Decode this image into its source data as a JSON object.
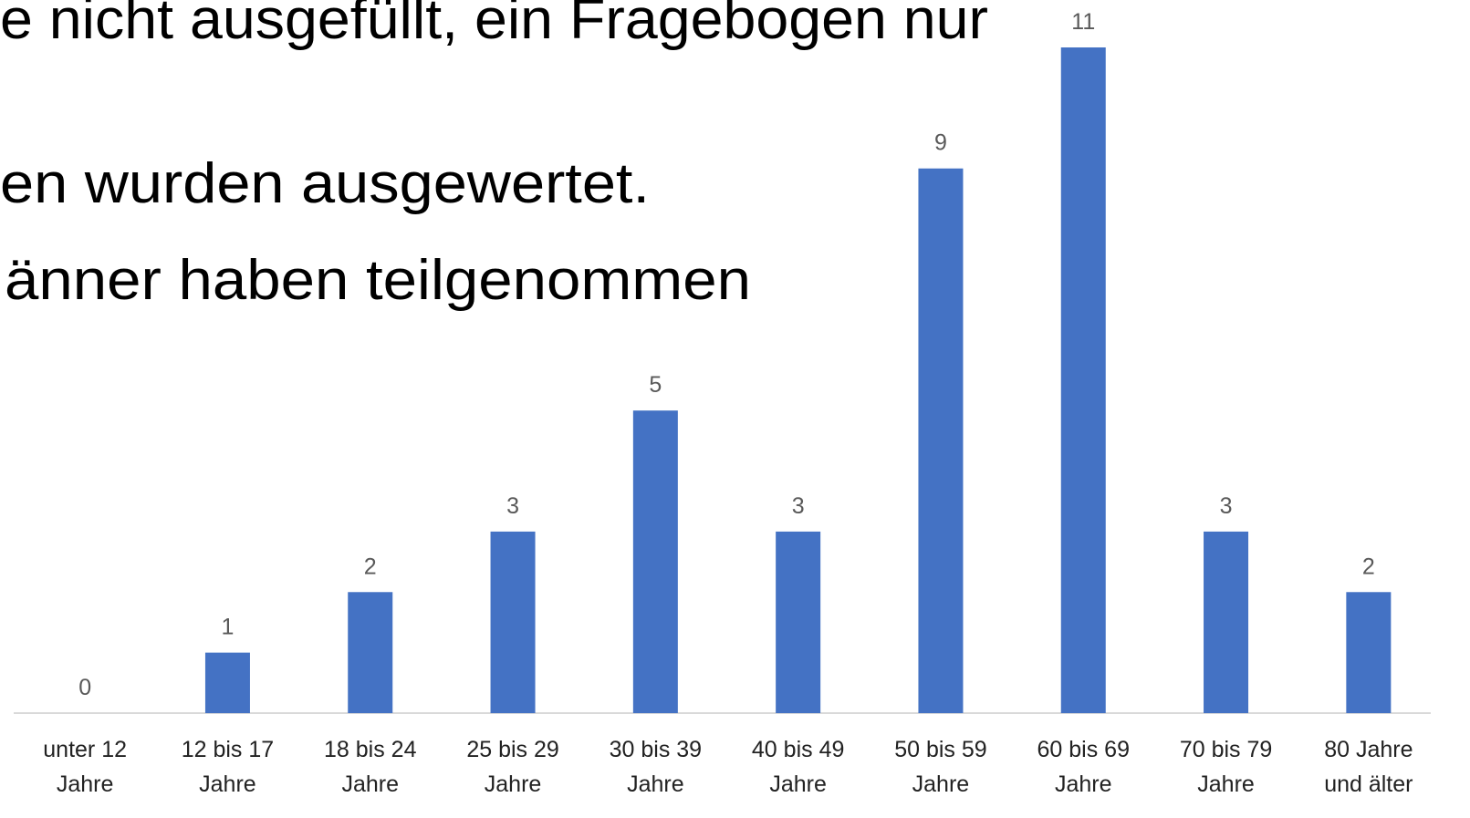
{
  "chart_data": {
    "type": "bar",
    "annotations": [
      "e nicht ausgefüllt, ein Fragebogen nur",
      "en wurden ausgewertet.",
      "änner haben teilgenommen"
    ],
    "categories": [
      "unter 12\nJahre",
      "12 bis 17\nJahre",
      "18 bis 24\nJahre",
      "25 bis 29\nJahre",
      "30 bis 39\nJahre",
      "40 bis 49\nJahre",
      "50 bis 59\nJahre",
      "60 bis 69\nJahre",
      "70 bis 79\nJahre",
      "80 Jahre\nund älter"
    ],
    "values": [
      0,
      1,
      2,
      3,
      5,
      3,
      9,
      11,
      3,
      2
    ],
    "color": "#4472c4",
    "ylim": [
      0,
      11
    ],
    "grid": false
  }
}
